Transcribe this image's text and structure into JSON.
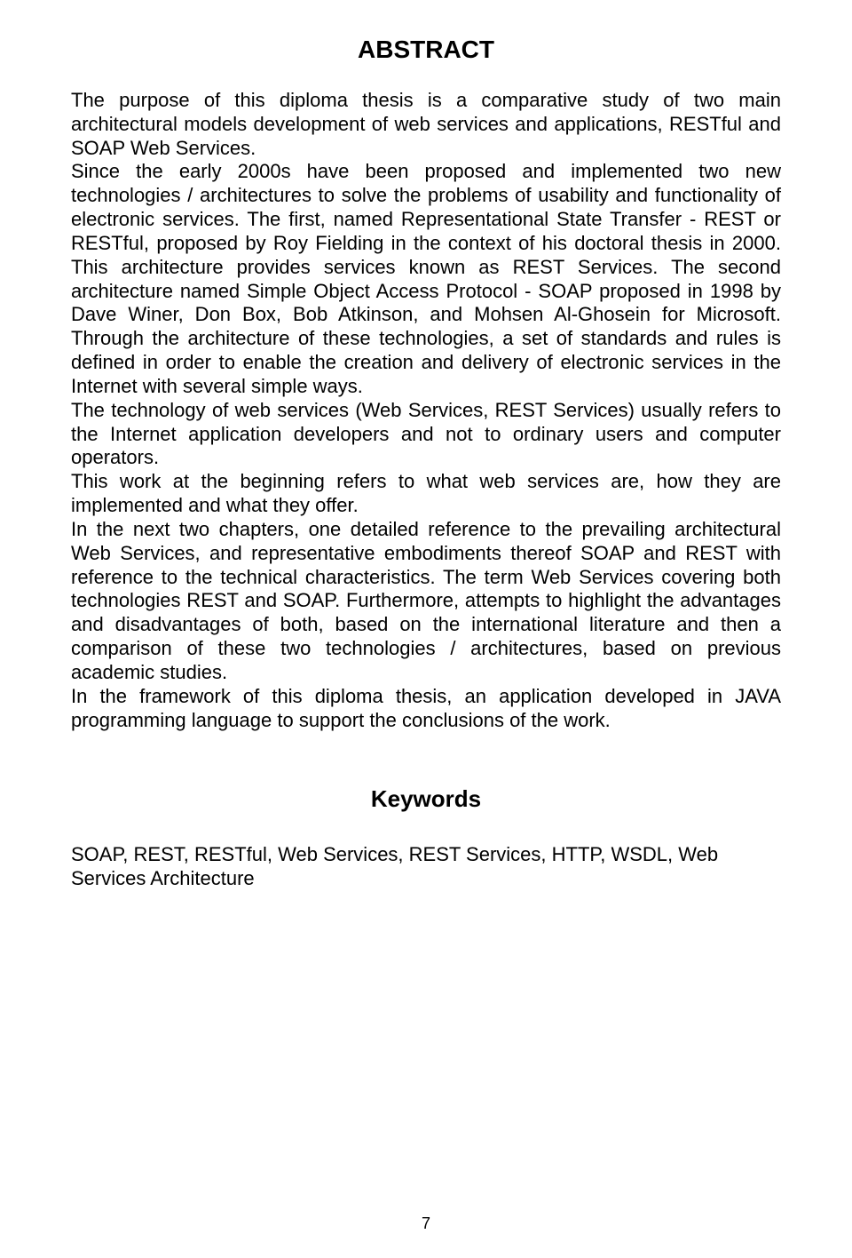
{
  "abstract": {
    "title": "ABSTRACT",
    "para": "The purpose of this diploma thesis is a comparative study of two main architectural models development of web services and applications, RESTful and SOAP Web Services.",
    "para2": "Since the early 2000s have been proposed and implemented two new technologies / architectures to solve the problems of usability and functionality of electronic services. The first, named Representational State Transfer - REST or RESTful, proposed by Roy Fielding in the context of his doctoral thesis in 2000. This architecture provides services known as REST Services. The second architecture named Simple Object Access Protocol - SOAP proposed in 1998 by Dave Winer, Don Box, Bob Atkinson, and Mohsen Al-Ghosein for Microsoft.  Through the architecture of these technologies, a set of standards and rules is defined in order to enable the creation and delivery of electronic services in the Internet with several simple ways.",
    "para3": "The technology of web services (Web Services, REST Services) usually refers to the Internet application developers and not to ordinary users and computer operators.",
    "para4": "This work at the beginning refers to what web services are, how they are implemented and what they offer.",
    "para5": "In the next two chapters, one detailed reference to the prevailing architectural Web Services, and representative embodiments thereof  SOAP and REST with reference to the technical characteristics. The term Web Services covering both technologies REST and SOAP. Furthermore, attempts to highlight the advantages and disadvantages of both, based on the international literature and then a comparison of these two technologies / architectures, based on previous academic studies.",
    "para6": "In the framework of this diploma thesis, an application developed in JAVA programming language to support the conclusions of the work."
  },
  "keywords": {
    "title": "Keywords",
    "text": "SOAP, REST, RESTful, Web Services, REST Services, HTTP, WSDL, Web Services Architecture"
  },
  "page_number": "7"
}
